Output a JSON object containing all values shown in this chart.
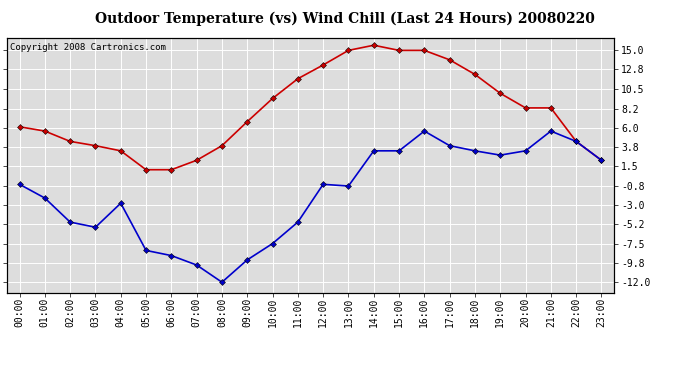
{
  "title": "Outdoor Temperature (vs) Wind Chill (Last 24 Hours) 20080220",
  "copyright": "Copyright 2008 Cartronics.com",
  "hours": [
    "00:00",
    "01:00",
    "02:00",
    "03:00",
    "04:00",
    "05:00",
    "06:00",
    "07:00",
    "08:00",
    "09:00",
    "10:00",
    "11:00",
    "12:00",
    "13:00",
    "14:00",
    "15:00",
    "16:00",
    "17:00",
    "18:00",
    "19:00",
    "20:00",
    "21:00",
    "22:00",
    "23:00"
  ],
  "red_data": [
    6.1,
    5.6,
    4.4,
    3.9,
    3.3,
    1.1,
    1.1,
    2.2,
    3.9,
    6.7,
    9.4,
    11.7,
    13.3,
    15.0,
    15.6,
    15.0,
    15.0,
    13.9,
    12.2,
    10.0,
    8.3,
    8.3,
    4.4,
    2.2
  ],
  "blue_data": [
    -0.6,
    -2.2,
    -5.0,
    -5.6,
    -2.8,
    -8.3,
    -8.9,
    -10.0,
    -12.0,
    -9.4,
    -7.5,
    -5.0,
    -0.6,
    -0.8,
    3.3,
    3.3,
    5.6,
    3.9,
    3.3,
    2.8,
    3.3,
    5.6,
    4.4,
    2.2
  ],
  "red_color": "#cc0000",
  "blue_color": "#0000cc",
  "bg_color": "#ffffff",
  "plot_bg_color": "#dddddd",
  "grid_color": "#ffffff",
  "yticks": [
    15.0,
    12.8,
    10.5,
    8.2,
    6.0,
    3.8,
    1.5,
    -0.8,
    -3.0,
    -5.2,
    -7.5,
    -9.8,
    -12.0
  ],
  "ylim": [
    -13.2,
    16.5
  ],
  "marker": "D",
  "marker_size": 3,
  "linewidth": 1.2,
  "title_fontsize": 10,
  "tick_fontsize": 7,
  "copyright_fontsize": 6.5
}
